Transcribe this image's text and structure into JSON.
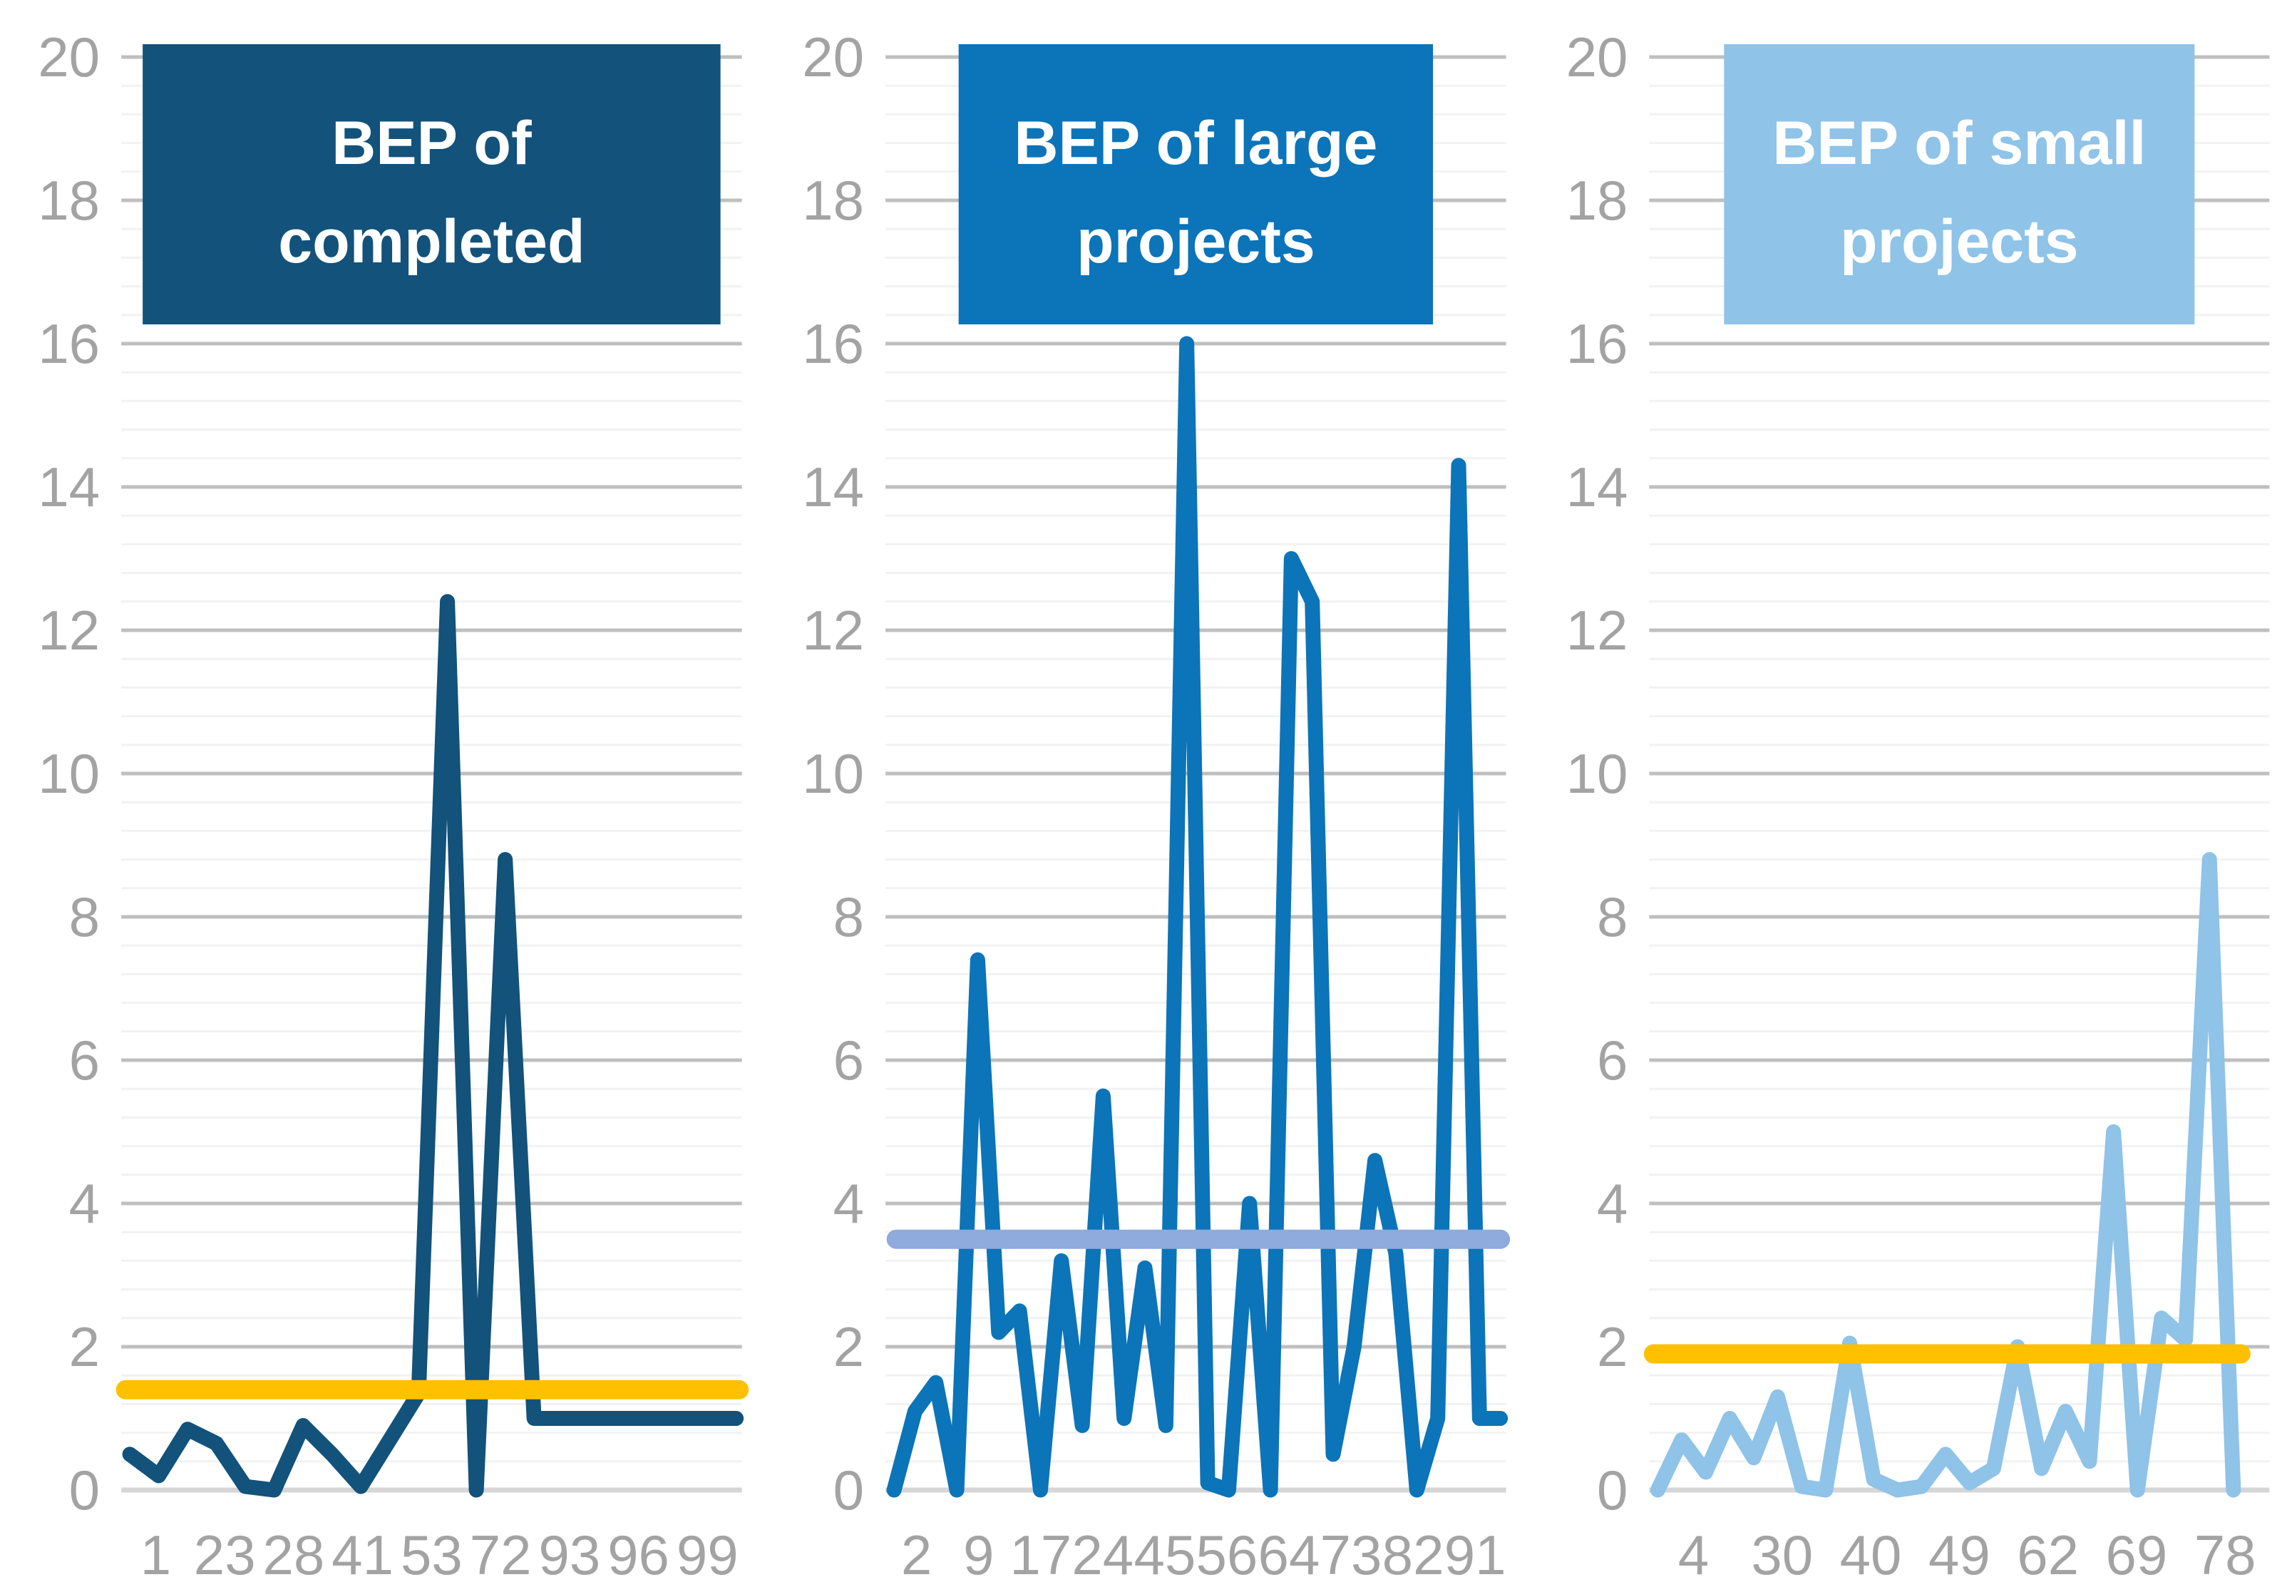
{
  "page": {
    "background": "#ffffff",
    "axis_label_color": "#A3A3A3",
    "grid_major_color": "#BFBFBF",
    "grid_minor_color": "#F2F2F2",
    "zero_line_color": "#D6D6D6"
  },
  "chart_data": [
    {
      "type": "line",
      "title": "BEP of completed",
      "title_lines": [
        "BEP of",
        "completed"
      ],
      "title_bg": "#12527B",
      "line_color": "#12527B",
      "reference_line": {
        "value": 1.4,
        "color": "#FFC000"
      },
      "ylabel": "",
      "xlabel": "",
      "ylim": [
        0,
        20
      ],
      "y_major_unit": 2,
      "y_minor_unit": 0.4,
      "y_tick_labels": [
        "20",
        "18",
        "16",
        "14",
        "12",
        "10",
        "8",
        "6",
        "4",
        "2",
        "0"
      ],
      "x_tick_labels": [
        "1",
        "23",
        "28",
        "41",
        "53",
        "72",
        "93",
        "96",
        "99"
      ],
      "values": [
        0.5,
        0.2,
        0.85,
        0.65,
        0.05,
        0.0,
        0.9,
        0.5,
        0.05,
        0.7,
        1.35,
        12.4,
        0.0,
        8.8,
        1.0,
        1.0,
        1.0,
        1.0,
        1.0,
        1.0,
        1.0,
        1.0
      ],
      "x_extent": 1.0,
      "ref_inset": [
        6,
        4
      ],
      "title_box_width": 810,
      "grid": true,
      "legend": "none"
    },
    {
      "type": "line",
      "title": "BEP of large projects",
      "title_lines": [
        "BEP of large",
        "projects"
      ],
      "title_bg": "#0C74B8",
      "line_color": "#0C74B8",
      "reference_line": {
        "value": 3.5,
        "color": "#8FAADC"
      },
      "ylabel": "",
      "xlabel": "",
      "ylim": [
        0,
        20
      ],
      "y_major_unit": 2,
      "y_minor_unit": 0.4,
      "y_tick_labels": [
        "20",
        "18",
        "16",
        "14",
        "12",
        "10",
        "8",
        "6",
        "4",
        "2",
        "0"
      ],
      "x_tick_labels": [
        "2",
        "9",
        "17",
        "24",
        "45",
        "56",
        "64",
        "73",
        "82",
        "91"
      ],
      "values": [
        0.0,
        1.1,
        1.5,
        0.0,
        7.4,
        2.2,
        2.5,
        0.0,
        3.2,
        0.9,
        5.5,
        1.0,
        3.1,
        0.9,
        16.0,
        0.1,
        0.0,
        4.0,
        0.0,
        13.0,
        12.4,
        0.5,
        2.0,
        4.6,
        3.3,
        0.0,
        1.0,
        14.3,
        1.0,
        1.0
      ],
      "x_extent": 1.0,
      "ref_inset": [
        15,
        8
      ],
      "title_box_width": 665,
      "grid": true,
      "legend": "none"
    },
    {
      "type": "line",
      "title": "BEP of small projects",
      "title_lines": [
        "BEP of small",
        "projects"
      ],
      "title_bg": "#8FC3E8",
      "line_color": "#8FC3E8",
      "reference_line": {
        "value": 1.9,
        "color": "#FFC000"
      },
      "ylabel": "",
      "xlabel": "",
      "ylim": [
        0,
        20
      ],
      "y_major_unit": 2,
      "y_minor_unit": 0.4,
      "y_tick_labels": [
        "20",
        "18",
        "16",
        "14",
        "12",
        "10",
        "8",
        "6",
        "4",
        "2",
        "0"
      ],
      "x_tick_labels": [
        "4",
        "30",
        "40",
        "49",
        "62",
        "69",
        "78"
      ],
      "values": [
        0.0,
        0.7,
        0.25,
        1.0,
        0.45,
        1.3,
        0.05,
        0.0,
        2.05,
        0.15,
        0.0,
        0.05,
        0.5,
        0.1,
        0.3,
        2.0,
        0.3,
        1.1,
        0.4,
        5.0,
        0.0,
        2.4,
        2.1,
        8.8,
        0.0
      ],
      "x_extent": 0.95,
      "ref_inset": [
        6,
        40
      ],
      "title_box_width": 660,
      "grid": true,
      "legend": "none"
    }
  ]
}
